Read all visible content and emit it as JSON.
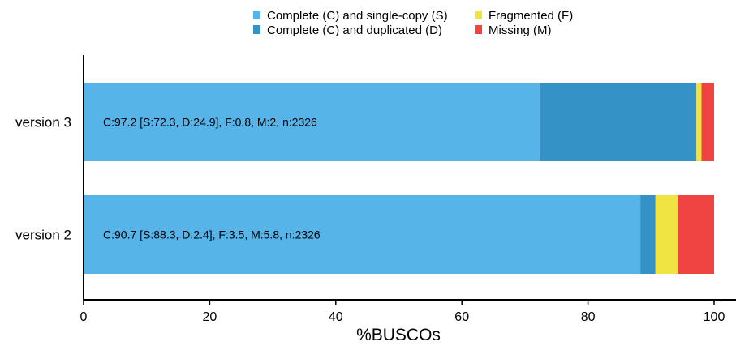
{
  "chart_data": {
    "type": "bar",
    "orientation": "horizontal",
    "stacked": true,
    "categories": [
      "version 3",
      "version 2"
    ],
    "series": [
      {
        "key": "S",
        "name": "Complete (C) and single-copy (S)",
        "color": "#56b4e9",
        "values": [
          72.3,
          88.3
        ]
      },
      {
        "key": "D",
        "name": "Complete (C) and duplicated (D)",
        "color": "#3492c7",
        "values": [
          24.9,
          2.4
        ]
      },
      {
        "key": "F",
        "name": "Fragmented (F)",
        "color": "#f0e442",
        "values": [
          0.8,
          3.5
        ]
      },
      {
        "key": "M",
        "name": "Missing (M)",
        "color": "#f04442",
        "values": [
          2.0,
          5.8
        ]
      }
    ],
    "bar_labels": [
      "C:97.2 [S:72.3, D:24.9], F:0.8, M:2, n:2326",
      "C:90.7 [S:88.3, D:2.4], F:3.5, M:5.8, n:2326"
    ],
    "xlabel": "%BUSCOs",
    "ylabel": "",
    "xlim": [
      0,
      100
    ],
    "xticks": [
      0,
      20,
      40,
      60,
      80,
      100
    ],
    "grid": false,
    "legend": {
      "position": "top",
      "layout": "two-columns",
      "columns": [
        [
          "S",
          "D"
        ],
        [
          "F",
          "M"
        ]
      ]
    }
  }
}
